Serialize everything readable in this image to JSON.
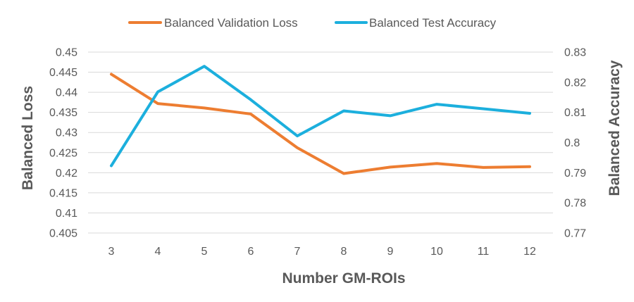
{
  "chart_data": {
    "type": "line",
    "categories": [
      3,
      4,
      5,
      6,
      7,
      8,
      9,
      10,
      11,
      12
    ],
    "xlabel": "Number GM-ROIs",
    "y_left": {
      "label": "Balanced Loss",
      "ylim": [
        0.405,
        0.45
      ],
      "ticks": [
        "0.405",
        "0.41",
        "0.415",
        "0.42",
        "0.425",
        "0.43",
        "0.435",
        "0.44",
        "0.445",
        "0.45"
      ]
    },
    "y_right": {
      "label": "Balanced Accuracy",
      "ylim": [
        0.77,
        0.83
      ],
      "ticks": [
        "0.77",
        "0.78",
        "0.79",
        "0.8",
        "0.81",
        "0.82",
        "0.83"
      ]
    },
    "grid": true,
    "legend_position": "top-center",
    "series": [
      {
        "name": "Balanced Validation Loss",
        "axis": "left",
        "color": "#ED7D31",
        "values": [
          0.4445,
          0.4372,
          0.4361,
          0.4346,
          0.4262,
          0.4198,
          0.4214,
          0.4223,
          0.4213,
          0.4215
        ]
      },
      {
        "name": "Balanced Test Accuracy",
        "axis": "right",
        "color": "#1CAFDD",
        "values": [
          0.7923,
          0.8168,
          0.8253,
          0.8142,
          0.8022,
          0.8105,
          0.8089,
          0.8127,
          0.8112,
          0.8097
        ]
      }
    ]
  }
}
